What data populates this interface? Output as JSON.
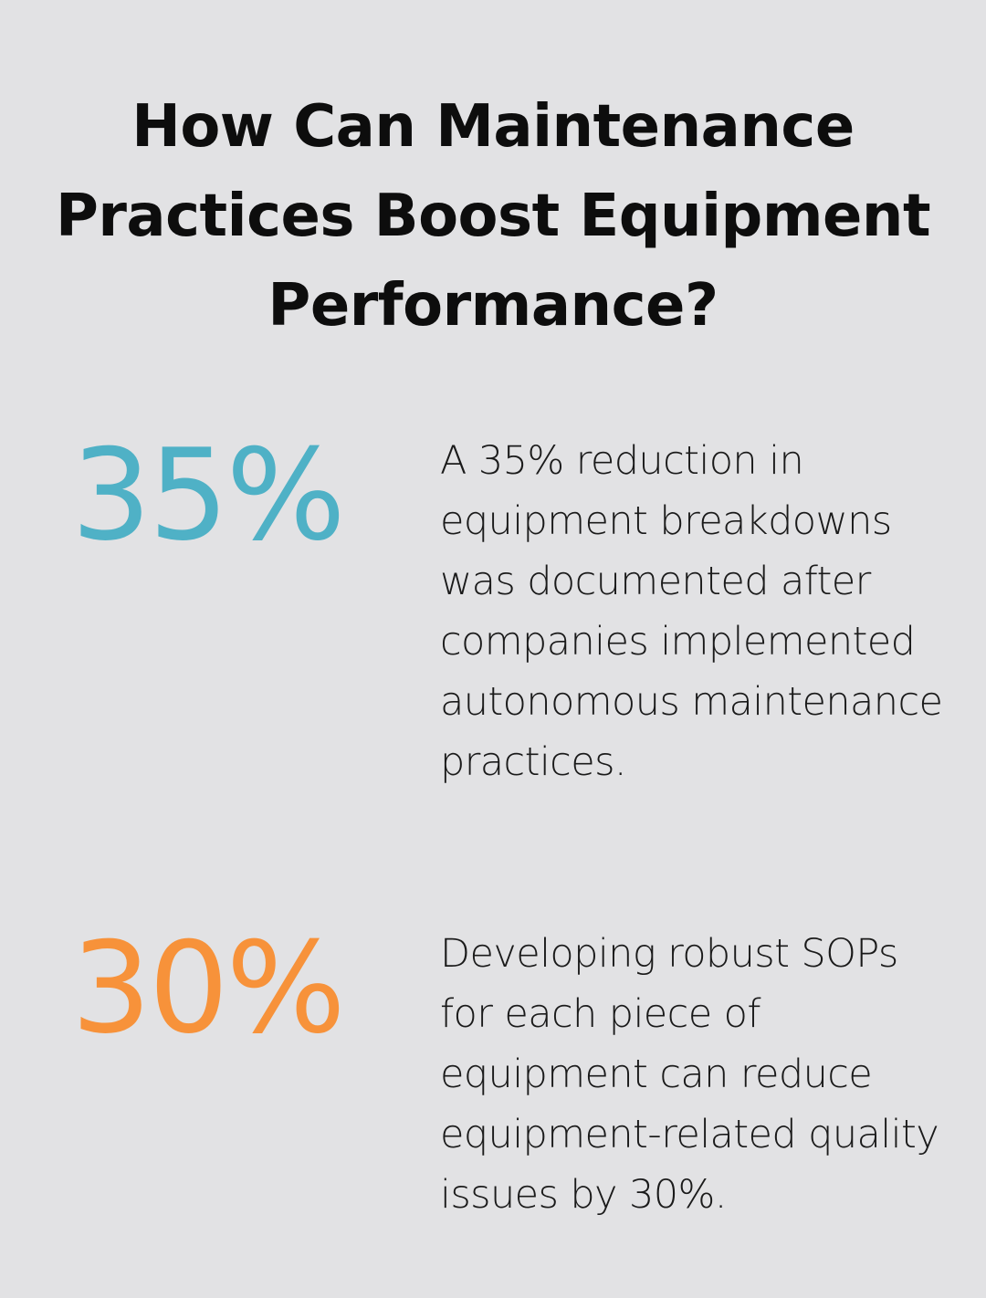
{
  "title": "How Can Maintenance Practices Boost Equipment Performance?",
  "stats": [
    {
      "value": "35%",
      "description": "A 35% reduction in equipment breakdowns was documented after companies implemented autonomous maintenance practices.",
      "color": "#4fb1c6"
    },
    {
      "value": "30%",
      "description": "Developing robust SOPs for each piece of equipment can reduce equipment-related quality issues by 30%.",
      "color": "#f7923a"
    }
  ]
}
